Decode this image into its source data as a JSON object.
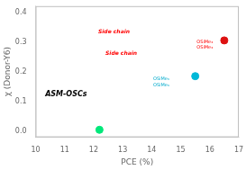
{
  "chart_data": {
    "type": "scatter",
    "xlabel": "PCE (%)",
    "ylabel": "χ (Donor-Y6)",
    "x": [
      12.2,
      15.5,
      16.5
    ],
    "values": [
      0.005,
      0.185,
      0.305
    ],
    "colors": [
      "#00e87a",
      "#00b8d8",
      "#dd1111"
    ],
    "xlim": [
      10,
      17
    ],
    "ylim": [
      -0.02,
      0.42
    ],
    "xticks": [
      10,
      11,
      12,
      13,
      14,
      15,
      16,
      17
    ],
    "yticks": [
      {
        "value": 0,
        "label": "0.0"
      },
      0.1,
      0.2,
      0.3,
      0.4
    ],
    "grid": false,
    "legend": false,
    "annotations": [
      {
        "text": "ASM-OSCs",
        "x": 11.05,
        "y": 0.125,
        "color": "#000000"
      },
      {
        "text": "Side chain",
        "x": 12.7,
        "y": 0.335,
        "color": "red"
      },
      {
        "text": "Side chain",
        "x": 12.95,
        "y": 0.262,
        "color": "red"
      },
      {
        "text": "OSiMe₃",
        "x": 14.05,
        "y": 0.175,
        "color": "#00aacc"
      },
      {
        "text": "OSiMe₃",
        "x": 14.05,
        "y": 0.155,
        "color": "#00aacc"
      },
      {
        "text": "OSiMe₃",
        "x": 15.55,
        "y": 0.3,
        "color": "red"
      },
      {
        "text": "OSiMe₃",
        "x": 15.55,
        "y": 0.28,
        "color": "red"
      }
    ]
  }
}
